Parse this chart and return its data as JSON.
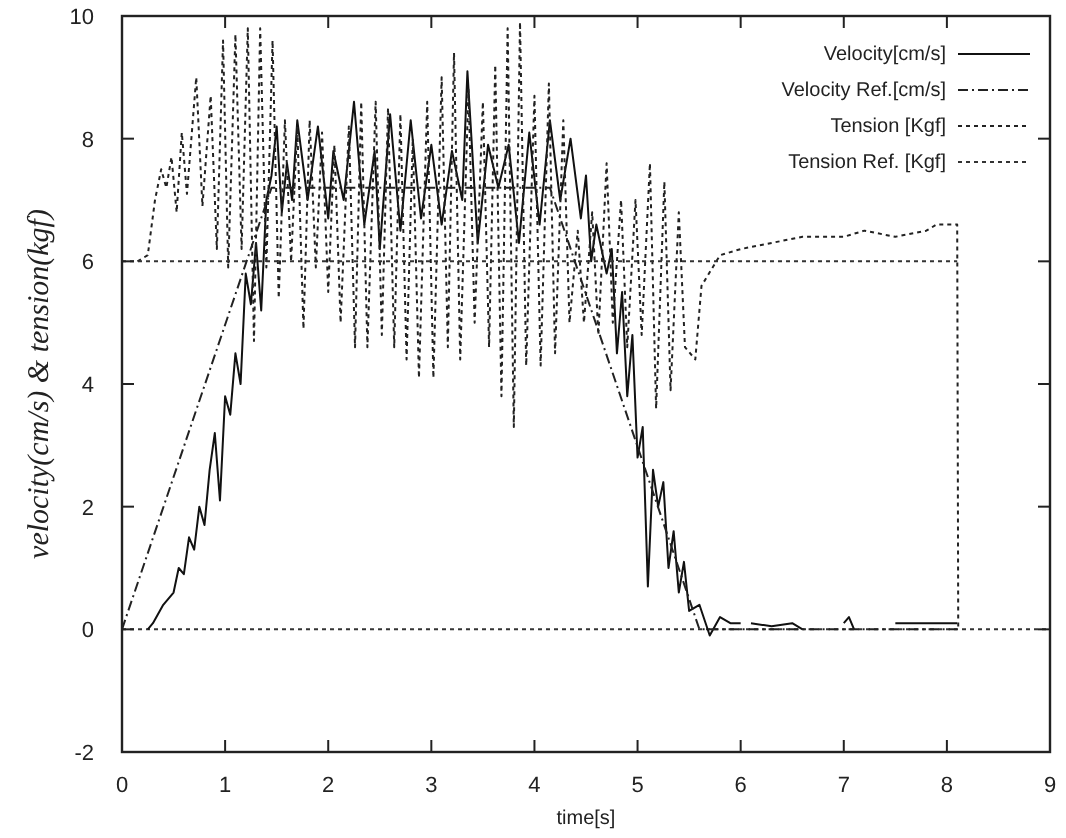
{
  "chart_data": {
    "type": "line",
    "xlabel": "time[s]",
    "ylabel": "velocity(cm/s) & tension(kgf)",
    "xlim": [
      0,
      9
    ],
    "xticks": [
      0,
      1,
      2,
      3,
      4,
      5,
      6,
      7,
      8,
      9
    ],
    "ylim": [
      -2,
      10
    ],
    "yticks": [
      -2,
      0,
      2,
      4,
      6,
      8,
      10
    ],
    "grid": false,
    "legend": "top right",
    "marker": "none",
    "ref_lines": [
      {
        "axis": "y",
        "value": 0,
        "line_style": "dotted",
        "color": "#333333"
      }
    ],
    "series": [
      {
        "name": "Velocity[cm/s]",
        "color": "#111111",
        "line_style": "solid",
        "x": [
          0.25,
          0.3,
          0.4,
          0.5,
          0.55,
          0.6,
          0.65,
          0.7,
          0.75,
          0.8,
          0.85,
          0.9,
          0.95,
          1.0,
          1.05,
          1.1,
          1.15,
          1.2,
          1.25,
          1.3,
          1.35,
          1.4,
          1.45,
          1.5,
          1.55,
          1.6,
          1.65,
          1.7,
          1.8,
          1.9,
          2.0,
          2.05,
          2.15,
          2.25,
          2.35,
          2.45,
          2.5,
          2.6,
          2.7,
          2.8,
          2.9,
          3.0,
          3.1,
          3.2,
          3.3,
          3.35,
          3.45,
          3.55,
          3.65,
          3.75,
          3.85,
          3.95,
          4.05,
          4.15,
          4.25,
          4.35,
          4.45,
          4.5,
          4.55,
          4.6,
          4.7,
          4.75,
          4.8,
          4.85,
          4.9,
          4.95,
          5.0,
          5.05,
          5.1,
          5.15,
          5.2,
          5.25,
          5.3,
          5.35,
          5.4,
          5.45,
          5.5,
          5.6,
          5.7,
          5.8,
          5.9,
          6.0,
          6.05,
          6.1,
          6.3,
          6.5,
          6.6,
          6.65,
          7.0,
          7.05,
          7.1,
          7.15,
          7.5,
          7.8,
          8.1
        ],
        "values": [
          0,
          0.1,
          0.4,
          0.6,
          1.0,
          0.9,
          1.5,
          1.3,
          2.0,
          1.7,
          2.6,
          3.2,
          2.1,
          3.8,
          3.5,
          4.5,
          4.0,
          5.8,
          5.3,
          6.3,
          5.2,
          7.0,
          7.4,
          8.2,
          6.8,
          7.6,
          7.0,
          8.3,
          7.0,
          8.2,
          6.7,
          7.8,
          7.0,
          8.6,
          6.6,
          7.8,
          6.2,
          8.4,
          6.5,
          8.3,
          6.7,
          7.9,
          6.6,
          7.8,
          7.0,
          9.1,
          6.3,
          7.9,
          7.2,
          7.9,
          6.3,
          8.1,
          6.6,
          8.3,
          7.0,
          8.0,
          6.7,
          7.4,
          6.0,
          6.6,
          5.8,
          6.2,
          4.5,
          5.5,
          3.8,
          4.8,
          2.8,
          3.3,
          0.7,
          2.6,
          2.0,
          2.4,
          1.0,
          1.6,
          0.6,
          1.1,
          0.3,
          0.4,
          -0.1,
          0.2,
          0.1,
          0.1,
          null,
          0.1,
          0.05,
          0.1,
          0.0,
          null,
          0.1,
          0.2,
          0.0,
          null,
          0.1,
          0.1,
          0.1
        ]
      },
      {
        "name": "Velocity Ref.[cm/s]",
        "color": "#222222",
        "line_style": "dashed",
        "x": [
          0,
          1.45,
          4.15,
          5.6,
          8.1
        ],
        "values": [
          0,
          7.2,
          7.2,
          0,
          0
        ]
      },
      {
        "name": "Tension [Kgf]",
        "color": "#222222",
        "line_style": "dotted",
        "x": [
          0.15,
          0.25,
          0.32,
          0.38,
          0.43,
          0.48,
          0.53,
          0.58,
          0.63,
          0.72,
          0.78,
          0.86,
          0.92,
          0.98,
          1.03,
          1.1,
          1.16,
          1.22,
          1.28,
          1.34,
          1.4,
          1.46,
          1.52,
          1.58,
          1.64,
          1.7,
          1.76,
          1.82,
          1.88,
          1.94,
          2.0,
          2.06,
          2.12,
          2.2,
          2.26,
          2.32,
          2.38,
          2.46,
          2.52,
          2.58,
          2.64,
          2.7,
          2.76,
          2.82,
          2.88,
          2.96,
          3.02,
          3.1,
          3.16,
          3.22,
          3.28,
          3.36,
          3.42,
          3.5,
          3.56,
          3.62,
          3.68,
          3.74,
          3.8,
          3.86,
          3.92,
          4.0,
          4.06,
          4.14,
          4.2,
          4.28,
          4.34,
          4.42,
          4.48,
          4.56,
          4.62,
          4.7,
          4.76,
          4.84,
          4.9,
          4.98,
          5.04,
          5.12,
          5.18,
          5.26,
          5.32,
          5.4,
          5.46,
          5.56,
          5.62,
          5.8,
          6.0,
          6.3,
          6.6,
          7.0,
          7.2,
          7.5,
          7.8,
          7.9,
          8.1,
          8.11
        ],
        "values": [
          6.0,
          6.1,
          7.0,
          7.5,
          7.2,
          7.7,
          6.8,
          8.1,
          7.1,
          9.0,
          6.9,
          8.7,
          6.2,
          9.6,
          5.9,
          9.7,
          6.2,
          9.8,
          4.7,
          9.8,
          5.9,
          9.6,
          5.4,
          8.3,
          6.0,
          8.2,
          4.9,
          8.3,
          5.9,
          8.1,
          5.5,
          7.9,
          5.0,
          8.2,
          4.6,
          8.6,
          4.6,
          8.6,
          4.8,
          8.5,
          4.6,
          8.4,
          4.4,
          8.0,
          4.1,
          8.6,
          4.1,
          9.0,
          4.6,
          9.4,
          4.4,
          8.8,
          5.0,
          8.6,
          4.6,
          9.2,
          3.8,
          9.8,
          3.3,
          9.9,
          4.3,
          8.7,
          4.3,
          8.9,
          4.5,
          8.3,
          5.0,
          6.5,
          5.0,
          6.8,
          4.8,
          7.6,
          5.0,
          7.0,
          4.6,
          7.0,
          4.8,
          7.6,
          3.6,
          7.3,
          3.9,
          6.8,
          4.6,
          4.4,
          5.6,
          6.1,
          6.2,
          6.3,
          6.4,
          6.4,
          6.5,
          6.4,
          6.5,
          6.6,
          6.6,
          0
        ]
      },
      {
        "name": "Tension Ref. [Kgf]",
        "color": "#333333",
        "line_style": "dotted",
        "x": [
          0,
          8.1
        ],
        "values": [
          6,
          6
        ]
      }
    ]
  }
}
